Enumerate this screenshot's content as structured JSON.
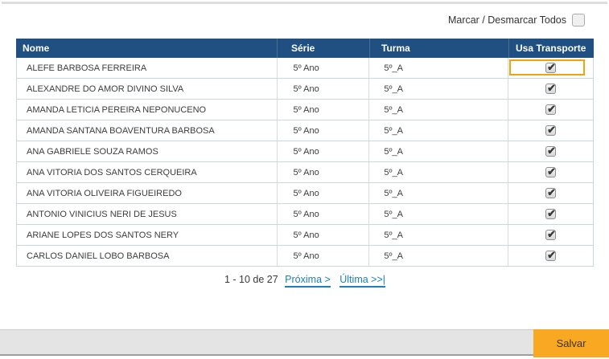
{
  "page": {
    "select_all_label": "Marcar / Desmarcar Todos",
    "select_all_checked": false
  },
  "table": {
    "headers": [
      "Nome",
      "Série",
      "Turma",
      "Usa Transporte"
    ],
    "rows": [
      {
        "nome": "ALEFE BARBOSA FERREIRA",
        "serie": "5º Ano",
        "turma": "5º_A",
        "usa_transporte": true,
        "focused": true
      },
      {
        "nome": "ALEXANDRE DO AMOR DIVINO SILVA",
        "serie": "5º Ano",
        "turma": "5º_A",
        "usa_transporte": true,
        "focused": false
      },
      {
        "nome": "AMANDA LETICIA PEREIRA NEPONUCENO",
        "serie": "5º Ano",
        "turma": "5º_A",
        "usa_transporte": true,
        "focused": false
      },
      {
        "nome": "AMANDA SANTANA BOAVENTURA BARBOSA",
        "serie": "5º Ano",
        "turma": "5º_A",
        "usa_transporte": true,
        "focused": false
      },
      {
        "nome": "ANA GABRIELE SOUZA RAMOS",
        "serie": "5º Ano",
        "turma": "5º_A",
        "usa_transporte": true,
        "focused": false
      },
      {
        "nome": "ANA VITORIA DOS SANTOS CERQUEIRA",
        "serie": "5º Ano",
        "turma": "5º_A",
        "usa_transporte": true,
        "focused": false
      },
      {
        "nome": "ANA VITORIA OLIVEIRA FIGUEIREDO",
        "serie": "5º Ano",
        "turma": "5º_A",
        "usa_transporte": true,
        "focused": false
      },
      {
        "nome": "ANTONIO VINICIUS NERI DE JESUS",
        "serie": "5º Ano",
        "turma": "5º_A",
        "usa_transporte": true,
        "focused": false
      },
      {
        "nome": "ARIANE LOPES DOS SANTOS NERY",
        "serie": "5º Ano",
        "turma": "5º_A",
        "usa_transporte": true,
        "focused": false
      },
      {
        "nome": "CARLOS DANIEL LOBO BARBOSA",
        "serie": "5º Ano",
        "turma": "5º_A",
        "usa_transporte": true,
        "focused": false
      }
    ]
  },
  "pagination": {
    "range_label": "1 - 10 de 27",
    "next_label": "Próxima >",
    "last_label": "Última >>|"
  },
  "footer": {
    "save_label": "Salvar"
  },
  "icons": {
    "check_glyph": "✔"
  },
  "colors": {
    "header_bg": "#1F5081",
    "link_blue": "#1C7FC0",
    "focus_orange": "#F0A30A",
    "save_orange": "#F9A822"
  }
}
